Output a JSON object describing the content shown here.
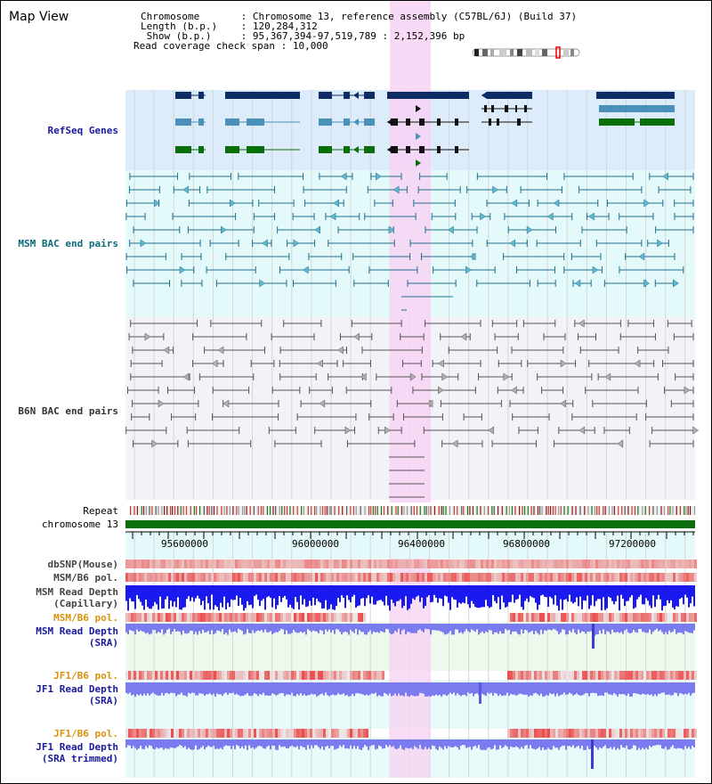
{
  "app": {
    "title": "Map View"
  },
  "header": {
    "rows": [
      {
        "label": "Chromosome       ",
        "value": "Chromosome 13, reference assembly (C57BL/6J) (Build 37)"
      },
      {
        "label": "Length (b.p.)    ",
        "value": "120,284,312"
      },
      {
        "label": " Show (b.p.)     ",
        "value": "95,367,394-97,519,789 : 2,152,396 bp"
      },
      {
        "label": "Read coverage check span",
        "value": "10,000"
      }
    ]
  },
  "tracks": {
    "refseq": "RefSeq Genes",
    "msm_bac": "MSM BAC end pairs",
    "b6n_bac": "B6N BAC end pairs",
    "repeat": "Repeat",
    "chromosome": "chromosome 13",
    "dbsnp": "dbSNP(Mouse)",
    "msm_pol1": "MSM/B6 pol.",
    "msm_depth_cap_1": "MSM Read Depth",
    "msm_depth_cap_2": "(Capillary)",
    "msm_pol2": "MSM/B6 pol.",
    "msm_depth_sra_1": "MSM Read Depth",
    "msm_depth_sra_2": "(SRA)",
    "jf1_pol1": "JF1/B6 pol.",
    "jf1_depth_sra_1": "JF1 Read Depth",
    "jf1_depth_sra_2": "(SRA)",
    "jf1_pol2": "JF1/B6 pol.",
    "jf1_depth_trim_1": "JF1 Read Depth",
    "jf1_depth_trim_2": "(SRA trimmed)"
  },
  "axis": {
    "ticks": [
      "95600000",
      "96000000",
      "96400000",
      "96800000",
      "97200000"
    ]
  },
  "colors": {
    "refseq_bg": "#dcecfa",
    "msm_bg": "#e4fafa",
    "b6n_bg": "#f2f2f8",
    "highlight": "#f8d4f4",
    "navy": "#0e2c66",
    "steel": "#4a90b8",
    "green": "#0a6e0a",
    "msm_line": "#1f6f8f",
    "b6n_line": "#555555",
    "depth_blue": "#1a1af0",
    "depth_lavender": "#7b7bf0",
    "pol_red": "#e84040",
    "chrom_green": "#0a6e0a"
  }
}
